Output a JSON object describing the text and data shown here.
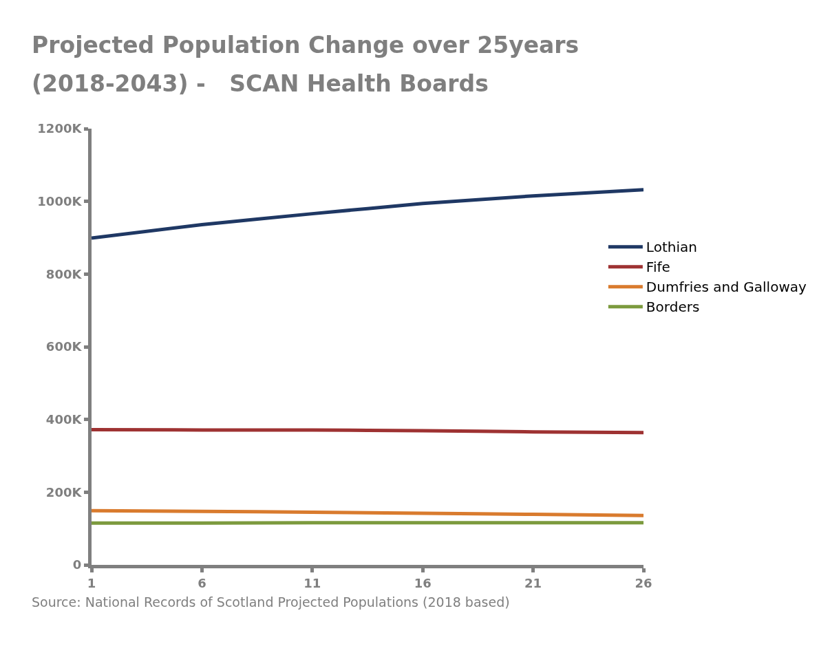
{
  "chart_data": {
    "type": "line",
    "title": "Projected Population Change over 25years (2018-2043) -   SCAN Health Boards",
    "x": [
      1,
      6,
      11,
      16,
      21,
      26
    ],
    "series": [
      {
        "name": "Lothian",
        "color": "#1f3864",
        "values": [
          899,
          936,
          966,
          994,
          1015,
          1032
        ]
      },
      {
        "name": "Fife",
        "color": "#9e3232",
        "values": [
          372,
          371,
          371,
          369,
          366,
          364
        ]
      },
      {
        "name": "Dumfries and Galloway",
        "color": "#d97b2e",
        "values": [
          149,
          147,
          145,
          142,
          139,
          136
        ]
      },
      {
        "name": "Borders",
        "color": "#7c9a3e",
        "values": [
          115,
          115,
          116,
          116,
          116,
          116
        ]
      }
    ],
    "xlim": [
      1,
      26
    ],
    "xticks": [
      1,
      6,
      11,
      16,
      21,
      26
    ],
    "ylim": [
      0,
      1200
    ],
    "yticks": [
      0,
      {
        "value": 200,
        "label": "200K"
      },
      {
        "value": 400,
        "label": "400K"
      },
      {
        "value": 600,
        "label": "600K"
      },
      {
        "value": 800,
        "label": "800K"
      },
      {
        "value": 1000,
        "label": "1000K"
      },
      {
        "value": 1200,
        "label": "1200K"
      }
    ],
    "grid": false,
    "legend": "right",
    "marker": "none",
    "line_style": "solid",
    "annotations": [
      "Source: National Records of Scotland Projected Populations (2018 based)"
    ]
  }
}
